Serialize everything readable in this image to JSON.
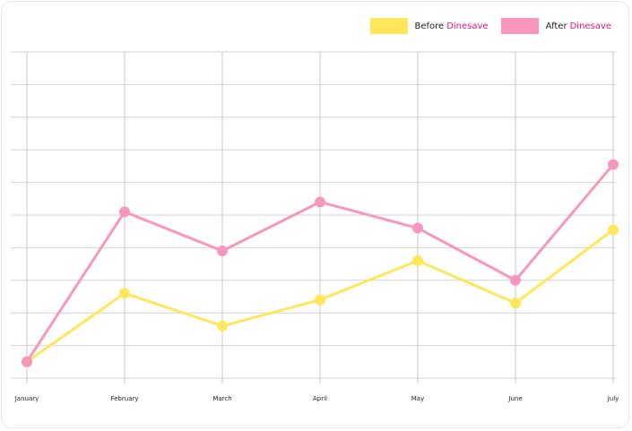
{
  "chart_data": {
    "type": "line",
    "categories": [
      "January",
      "February",
      "March",
      "April",
      "May",
      "June",
      "July"
    ],
    "series": [
      {
        "name": "Before Dinesave",
        "name_prefix": "Before",
        "name_brand": "Dinesave",
        "color": "#ffe75b",
        "values": [
          1.0,
          5.2,
          3.2,
          4.8,
          7.2,
          4.6,
          9.1
        ]
      },
      {
        "name": "After Dinesave",
        "name_prefix": "After",
        "name_brand": "Dinesave",
        "color": "#f797be",
        "values": [
          1.0,
          10.2,
          7.8,
          10.8,
          9.2,
          6.0,
          13.1
        ]
      }
    ],
    "brand_color": "#e8137a",
    "ylim": [
      0,
      20
    ],
    "grid": true,
    "legend_position": "top-right",
    "title": "",
    "xlabel": "",
    "ylabel": ""
  }
}
